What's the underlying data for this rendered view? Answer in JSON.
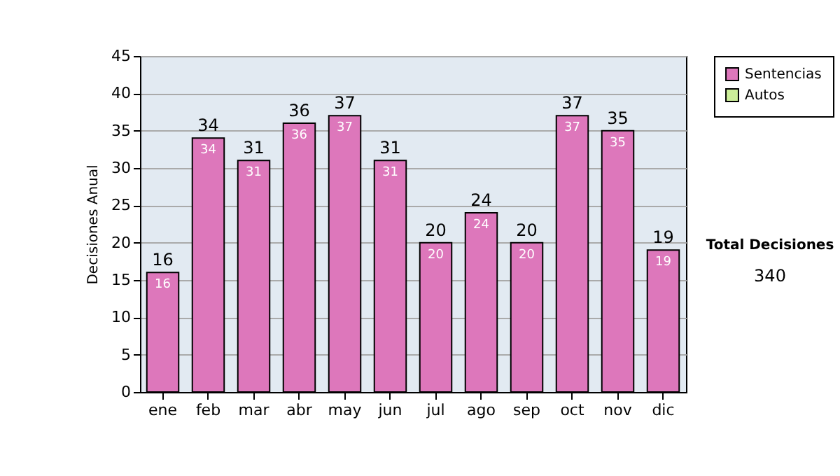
{
  "chart_data": {
    "type": "bar",
    "ylabel": "Decisiones Anual",
    "categories": [
      "ene",
      "feb",
      "mar",
      "abr",
      "may",
      "jun",
      "jul",
      "ago",
      "sep",
      "oct",
      "nov",
      "dic"
    ],
    "series": [
      {
        "name": "Sentencias",
        "color": "#dd77bb",
        "values": [
          16,
          34,
          31,
          36,
          37,
          31,
          20,
          24,
          20,
          37,
          35,
          19
        ]
      },
      {
        "name": "Autos",
        "color": "#ccee99",
        "values": [
          null,
          null,
          null,
          null,
          null,
          null,
          null,
          null,
          null,
          null,
          null,
          null
        ]
      }
    ],
    "totals": [
      "16",
      "34",
      "31",
      "36",
      "37",
      "31",
      "20",
      "24",
      "20",
      "37",
      "35",
      "19"
    ],
    "data_labels": true,
    "ylim": [
      0,
      45
    ],
    "yticks": [
      0,
      5,
      10,
      15,
      20,
      25,
      30,
      35,
      40,
      45
    ],
    "grid": "y",
    "legend": "right",
    "annotations": [
      "Total Decisiones",
      "340"
    ]
  }
}
